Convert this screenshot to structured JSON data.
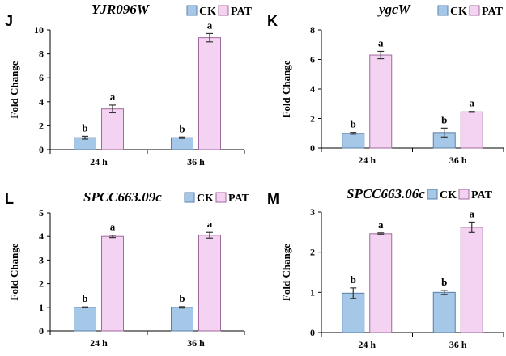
{
  "figure": {
    "legend": {
      "entries": [
        "CK",
        "PAT"
      ],
      "colors": [
        "#a5c8e8",
        "#f3d3f1"
      ],
      "edge_colors": [
        "#5b7fa6",
        "#a06a9e"
      ]
    }
  },
  "chart_data": [
    {
      "panel": "J",
      "type": "bar",
      "title": "YJR096W",
      "xlabel": "",
      "ylabel": "Fold Change",
      "categories": [
        "24 h",
        "36 h"
      ],
      "ylim": [
        0,
        10
      ],
      "yticks": [
        0,
        2,
        4,
        6,
        8,
        10
      ],
      "legend": [
        "CK",
        "PAT"
      ],
      "series": [
        {
          "name": "CK",
          "values": [
            1.0,
            1.0
          ],
          "errors": [
            0.12,
            0.06
          ],
          "labels": [
            "b",
            "b"
          ]
        },
        {
          "name": "PAT",
          "values": [
            3.4,
            9.35
          ],
          "errors": [
            0.32,
            0.35
          ],
          "labels": [
            "a",
            "a"
          ]
        }
      ]
    },
    {
      "panel": "K",
      "type": "bar",
      "title": "ygcW",
      "xlabel": "",
      "ylabel": "Fold Change",
      "categories": [
        "24 h",
        "36 h"
      ],
      "ylim": [
        0,
        8
      ],
      "yticks": [
        0,
        2,
        4,
        6,
        8
      ],
      "legend": [
        "CK",
        "PAT"
      ],
      "series": [
        {
          "name": "CK",
          "values": [
            1.0,
            1.05
          ],
          "errors": [
            0.06,
            0.3
          ],
          "labels": [
            "b",
            "b"
          ]
        },
        {
          "name": "PAT",
          "values": [
            6.3,
            2.45
          ],
          "errors": [
            0.25,
            0.03
          ],
          "labels": [
            "a",
            "a"
          ]
        }
      ]
    },
    {
      "panel": "L",
      "type": "bar",
      "title": "SPCC663.09c",
      "xlabel": "",
      "ylabel": "Fold Change",
      "categories": [
        "24 h",
        "36 h"
      ],
      "ylim": [
        0,
        5
      ],
      "yticks": [
        0,
        1,
        2,
        3,
        4,
        5
      ],
      "legend": [
        "CK",
        "PAT"
      ],
      "series": [
        {
          "name": "CK",
          "values": [
            1.0,
            1.0
          ],
          "errors": [
            0.02,
            0.03
          ],
          "labels": [
            "b",
            "b"
          ]
        },
        {
          "name": "PAT",
          "values": [
            4.0,
            4.05
          ],
          "errors": [
            0.05,
            0.12
          ],
          "labels": [
            "a",
            "a"
          ]
        }
      ]
    },
    {
      "panel": "M",
      "type": "bar",
      "title": "SPCC663.06c",
      "xlabel": "",
      "ylabel": "Fold Change",
      "categories": [
        "24 h",
        "36 h"
      ],
      "ylim": [
        0,
        3
      ],
      "yticks": [
        0,
        1,
        2,
        3
      ],
      "legend": [
        "CK",
        "PAT"
      ],
      "series": [
        {
          "name": "CK",
          "values": [
            0.98,
            1.0
          ],
          "errors": [
            0.13,
            0.05
          ],
          "labels": [
            "b",
            "b"
          ]
        },
        {
          "name": "PAT",
          "values": [
            2.46,
            2.62
          ],
          "errors": [
            0.02,
            0.13
          ],
          "labels": [
            "a",
            "a"
          ]
        }
      ]
    }
  ]
}
